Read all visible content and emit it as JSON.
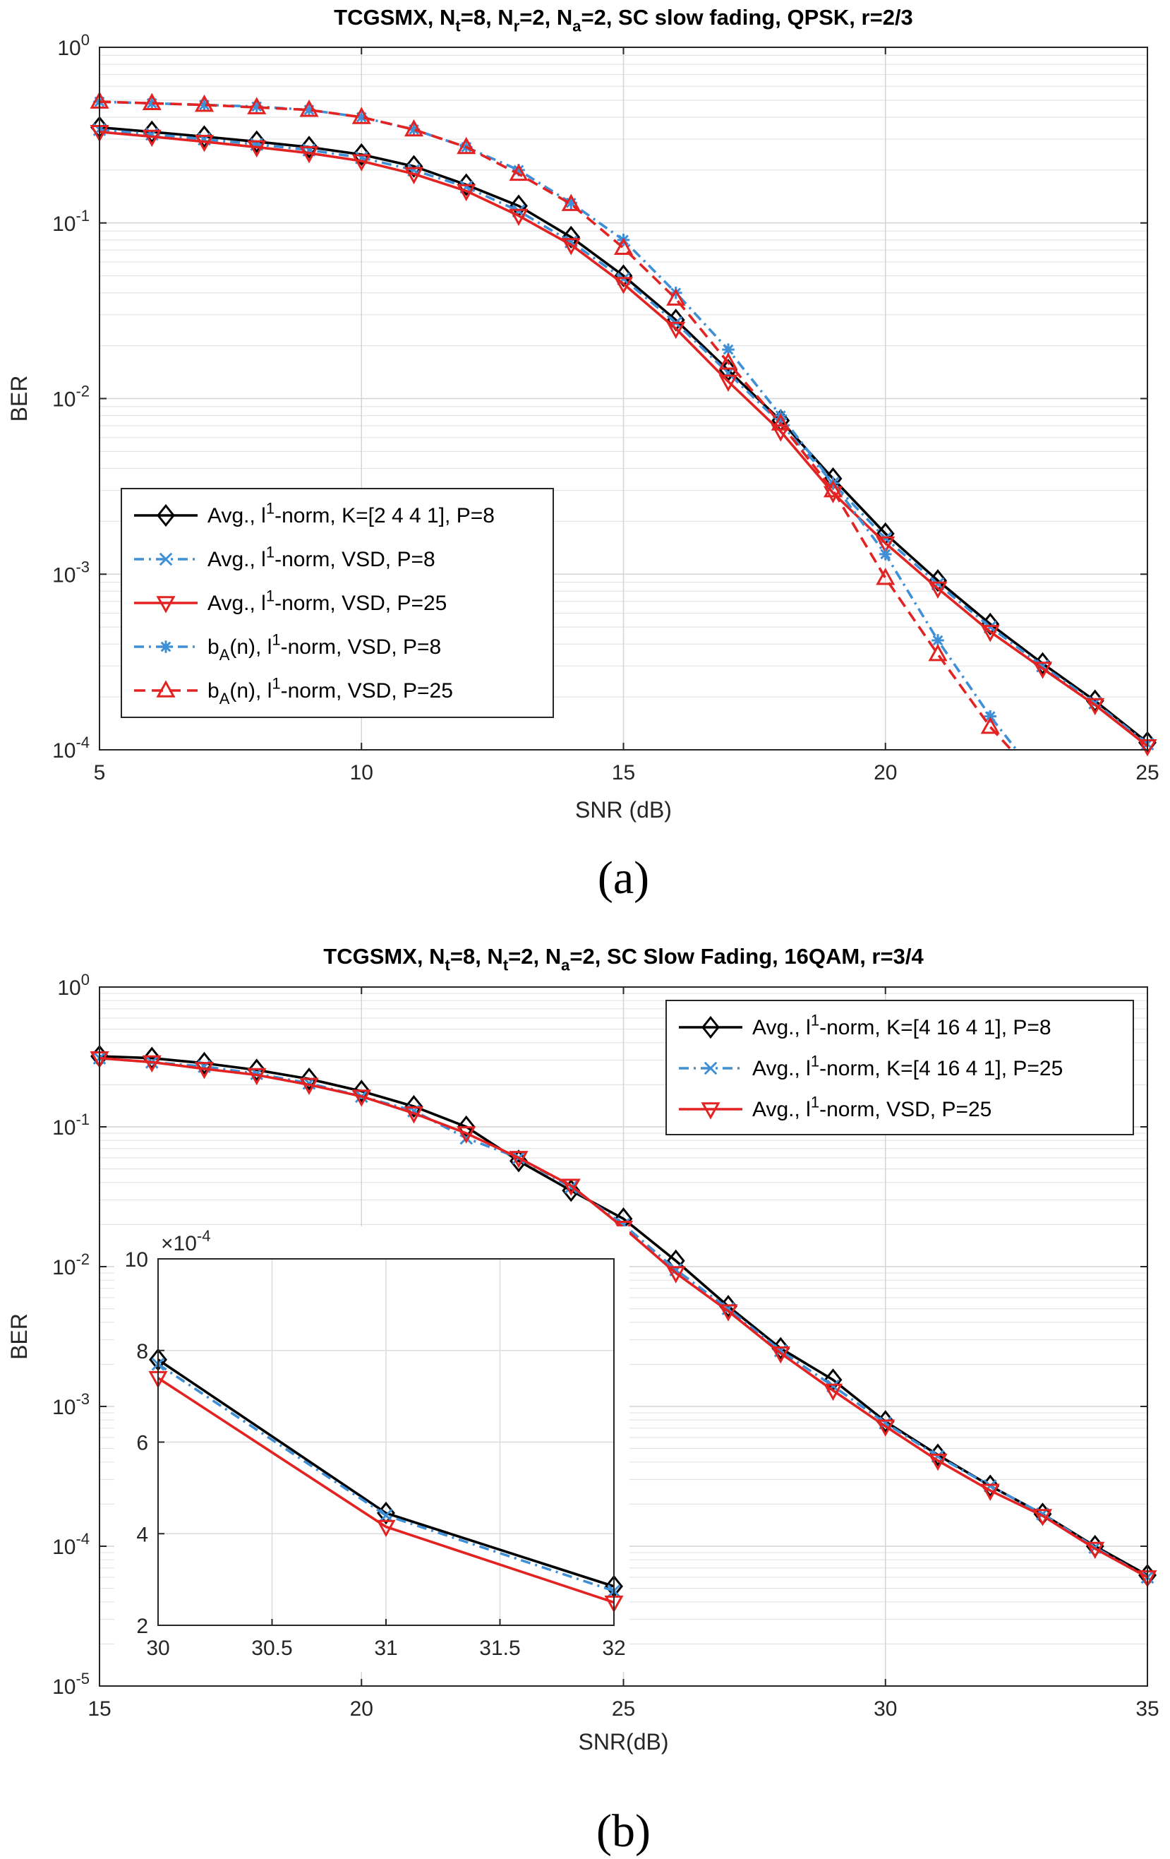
{
  "chart_data": [
    {
      "type": "line",
      "title": "TCGSMX, N_t=8, N_r=2, N_a=2, SC slow fading, QPSK, r=2/3",
      "xlabel": "SNR (dB)",
      "ylabel": "BER",
      "xlim": [
        5,
        25
      ],
      "ylim": [
        0.0001,
        1
      ],
      "yscale": "log",
      "grid": true,
      "legend_position": "bottom-left",
      "xticks": [
        "5",
        "10",
        "15",
        "20",
        "25"
      ],
      "yticks": [
        {
          "base": "10",
          "exp": "0"
        },
        {
          "base": "10",
          "exp": "-1"
        },
        {
          "base": "10",
          "exp": "-2"
        },
        {
          "base": "10",
          "exp": "-3"
        },
        {
          "base": "10",
          "exp": "-4"
        }
      ],
      "caption": "(a)",
      "series": [
        {
          "legend_text": "Avg., l^1-norm, K=[2 4 4 1], P=8",
          "color": "#000000",
          "dash": "solid",
          "marker": "diamond",
          "x": [
            5,
            6,
            7,
            8,
            9,
            10,
            11,
            12,
            13,
            14,
            15,
            16,
            17,
            18,
            19,
            20,
            21,
            22,
            23,
            24,
            25
          ],
          "y": [
            0.35,
            0.33,
            0.31,
            0.29,
            0.27,
            0.245,
            0.21,
            0.165,
            0.125,
            0.083,
            0.05,
            0.028,
            0.0145,
            0.0075,
            0.0035,
            0.0017,
            0.00092,
            0.00052,
            0.00031,
            0.00019,
            0.00011
          ]
        },
        {
          "legend_text": "Avg., l^1-norm, VSD, P=8",
          "color": "#3e8fd6",
          "dash": "dashdot",
          "marker": "x",
          "x": [
            5,
            6,
            7,
            8,
            9,
            10,
            11,
            12,
            13,
            14,
            15,
            16,
            17,
            18,
            19,
            20,
            21,
            22,
            23,
            24,
            25
          ],
          "y": [
            0.34,
            0.32,
            0.3,
            0.28,
            0.26,
            0.235,
            0.2,
            0.16,
            0.117,
            0.078,
            0.048,
            0.027,
            0.014,
            0.0072,
            0.0033,
            0.0016,
            0.00088,
            0.0005,
            0.0003,
            0.000185,
            0.000108
          ]
        },
        {
          "legend_text": "Avg., l^1-norm, VSD, P=25",
          "color": "#e32222",
          "dash": "solid",
          "marker": "triangle-down",
          "x": [
            5,
            6,
            7,
            8,
            9,
            10,
            11,
            12,
            13,
            14,
            15,
            16,
            17,
            18,
            19,
            20,
            21,
            22,
            23,
            24,
            25
          ],
          "y": [
            0.33,
            0.31,
            0.29,
            0.27,
            0.25,
            0.225,
            0.19,
            0.152,
            0.11,
            0.075,
            0.045,
            0.025,
            0.0125,
            0.0065,
            0.0029,
            0.0015,
            0.00083,
            0.00047,
            0.00029,
            0.00018,
            0.000105
          ]
        },
        {
          "legend_text": "b_A(n), l^1-norm, VSD, P=8",
          "color": "#3e8fd6",
          "dash": "dashdot",
          "marker": "star",
          "x": [
            5,
            6,
            7,
            8,
            9,
            10,
            11,
            12,
            13,
            14,
            15,
            16,
            17,
            18,
            19,
            20,
            21,
            22,
            22.5
          ],
          "y": [
            0.49,
            0.48,
            0.47,
            0.46,
            0.44,
            0.4,
            0.34,
            0.27,
            0.2,
            0.13,
            0.08,
            0.04,
            0.019,
            0.008,
            0.0033,
            0.0013,
            0.00042,
            0.000155,
            0.0001
          ]
        },
        {
          "legend_text": "b_A(n), l^1-norm, VSD, P=25",
          "color": "#e32222",
          "dash": "dashed",
          "marker": "triangle-up",
          "x": [
            5,
            6,
            7,
            8,
            9,
            10,
            11,
            12,
            13,
            14,
            15,
            16,
            17,
            18,
            19,
            20,
            21,
            22,
            22.4
          ],
          "y": [
            0.49,
            0.48,
            0.47,
            0.455,
            0.44,
            0.4,
            0.34,
            0.27,
            0.19,
            0.128,
            0.072,
            0.037,
            0.016,
            0.0072,
            0.003,
            0.00095,
            0.00035,
            0.000135,
            0.0001
          ]
        }
      ]
    },
    {
      "type": "line",
      "title": "TCGSMX, N_t=8, N_t=2, N_a=2,  SC Slow Fading, 16QAM, r=3/4",
      "xlabel": "SNR(dB)",
      "ylabel": "BER",
      "xlim": [
        15,
        35
      ],
      "ylim": [
        1e-05,
        1
      ],
      "yscale": "log",
      "grid": true,
      "legend_position": "top-right",
      "xticks": [
        "15",
        "20",
        "25",
        "30",
        "35"
      ],
      "yticks": [
        {
          "base": "10",
          "exp": "0"
        },
        {
          "base": "10",
          "exp": "-1"
        },
        {
          "base": "10",
          "exp": "-2"
        },
        {
          "base": "10",
          "exp": "-3"
        },
        {
          "base": "10",
          "exp": "-4"
        },
        {
          "base": "10",
          "exp": "-5"
        }
      ],
      "caption": "(b)",
      "series": [
        {
          "legend_text": "Avg., l^1-norm, K=[4 16 4 1], P=8",
          "color": "#000000",
          "dash": "solid",
          "marker": "diamond",
          "x": [
            15,
            16,
            17,
            18,
            19,
            20,
            21,
            22,
            23,
            24,
            25,
            26,
            27,
            28,
            29,
            30,
            31,
            32,
            33,
            34,
            35
          ],
          "y": [
            0.32,
            0.31,
            0.285,
            0.255,
            0.22,
            0.18,
            0.14,
            0.1,
            0.057,
            0.035,
            0.022,
            0.011,
            0.0052,
            0.0026,
            0.00155,
            0.00078,
            0.00045,
            0.00027,
            0.00017,
            0.0001,
            6.2e-05
          ]
        },
        {
          "legend_text": "Avg., l^1-norm, K=[4 16 4 1], P=25",
          "color": "#3e8fd6",
          "dash": "dashdot",
          "marker": "x",
          "x": [
            15,
            16,
            17,
            18,
            19,
            20,
            21,
            22,
            23,
            24,
            25,
            26,
            27,
            28,
            29,
            30,
            31,
            32,
            33,
            34,
            35
          ],
          "y": [
            0.31,
            0.29,
            0.27,
            0.24,
            0.205,
            0.165,
            0.13,
            0.083,
            0.06,
            0.037,
            0.02,
            0.0095,
            0.005,
            0.0025,
            0.0014,
            0.00076,
            0.00044,
            0.00027,
            0.00017,
            9.8e-05,
            6e-05
          ]
        },
        {
          "legend_text": "Avg., l^1-norm, VSD, P=25",
          "color": "#e32222",
          "dash": "solid",
          "marker": "triangle-down",
          "x": [
            15,
            16,
            17,
            18,
            19,
            20,
            21,
            22,
            23,
            24,
            25,
            26,
            27,
            28,
            29,
            30,
            31,
            32,
            33,
            34,
            35
          ],
          "y": [
            0.31,
            0.29,
            0.26,
            0.235,
            0.2,
            0.165,
            0.125,
            0.09,
            0.06,
            0.038,
            0.019,
            0.009,
            0.0048,
            0.0024,
            0.0013,
            0.00072,
            0.00041,
            0.00025,
            0.000165,
            9.6e-05,
            6e-05
          ]
        }
      ],
      "inset": {
        "xlim": [
          30,
          32
        ],
        "ylim": [
          2,
          10
        ],
        "yscale": "linear",
        "exponent_label": {
          "prefix": "×10",
          "exp": "-4"
        },
        "xticks": [
          "30",
          "30.5",
          "31",
          "31.5",
          "32"
        ],
        "yticks": [
          "2",
          "4",
          "6",
          "8",
          "10"
        ],
        "series": [
          {
            "x": [
              30,
              31,
              32
            ],
            "y": [
              7.8,
              4.45,
              2.85
            ]
          },
          {
            "x": [
              30,
              31,
              32
            ],
            "y": [
              7.7,
              4.4,
              2.75
            ]
          },
          {
            "x": [
              30,
              31,
              32
            ],
            "y": [
              7.4,
              4.15,
              2.5
            ]
          }
        ]
      }
    }
  ]
}
